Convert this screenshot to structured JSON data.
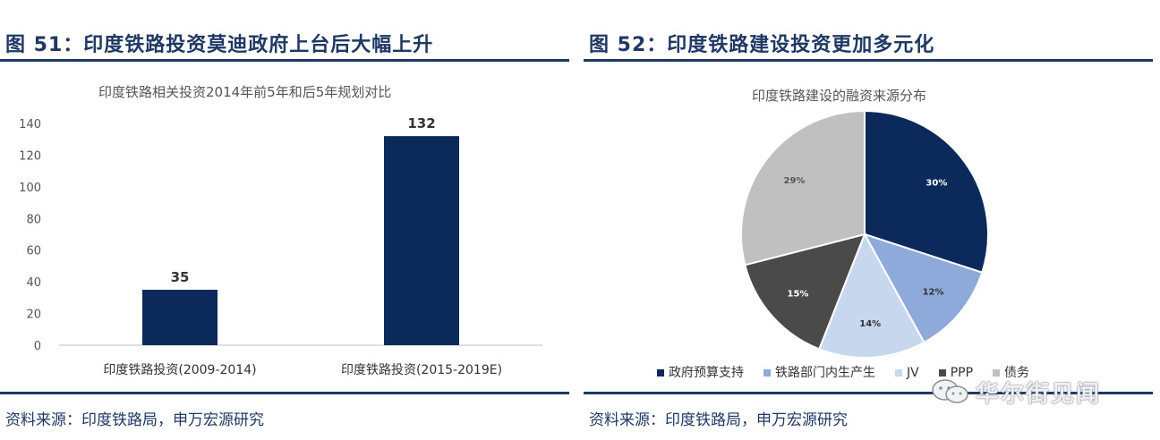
{
  "left_panel": {
    "fig_title": "图 51：印度铁路投资莫迪政府上台后大幅上升",
    "source": "资料来源：印度铁路局，申万宏源研究"
  },
  "right_panel": {
    "fig_title": "图 52：印度铁路建设投资更加多元化",
    "source": "资料来源：印度铁路局，申万宏源研究"
  },
  "watermark": {
    "text": "华尔街见闻",
    "icon": "wechat-icon"
  },
  "chart_data": [
    {
      "type": "bar",
      "title": "印度铁路相关投资2014年前5年和后5年规划对比",
      "categories": [
        "印度铁路投资(2009-2014)",
        "印度铁路投资(2015-2019E)"
      ],
      "values": [
        35,
        132
      ],
      "ylim": [
        0,
        140
      ],
      "yticks": [
        0,
        20,
        40,
        60,
        80,
        100,
        120,
        140
      ],
      "grid": false,
      "color": "#0b2a5b",
      "xlabel": "",
      "ylabel": ""
    },
    {
      "type": "pie",
      "title": "印度铁路建设的融资来源分布",
      "labels": [
        "政府预算支持",
        "铁路部门内生产生",
        "JV",
        "PPP",
        "债务"
      ],
      "values": [
        30,
        12,
        14,
        15,
        29
      ],
      "colors": [
        "#0b2a5b",
        "#8eaadb",
        "#c7d7ee",
        "#4a4a4a",
        "#c0c0c0"
      ],
      "label_colors": [
        "#ffffff",
        "#333333",
        "#333333",
        "#ffffff",
        "#555555"
      ],
      "legend_position": "bottom"
    }
  ]
}
